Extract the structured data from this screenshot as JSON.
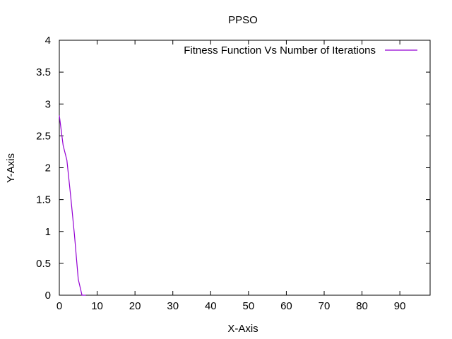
{
  "chart_data": {
    "type": "line",
    "title": "PPSO",
    "xlabel": "X-Axis",
    "ylabel": "Y-Axis",
    "xlim": [
      0,
      98
    ],
    "ylim": [
      0,
      4
    ],
    "xticks": [
      0,
      10,
      20,
      30,
      40,
      50,
      60,
      70,
      80,
      90
    ],
    "yticks": [
      0,
      0.5,
      1,
      1.5,
      2,
      2.5,
      3,
      3.5,
      4
    ],
    "ytick_labels": [
      "0",
      "0.5",
      "1",
      "1.5",
      "2",
      "2.5",
      "3",
      "3.5",
      "4"
    ],
    "xtick_labels": [
      "0",
      "10",
      "20",
      "30",
      "40",
      "50",
      "60",
      "70",
      "80",
      "90"
    ],
    "grid": false,
    "legend_position": "top-right",
    "series": [
      {
        "name": "Fitness Function Vs Number of Iterations",
        "color": "#9400d3",
        "x": [
          0,
          1,
          2,
          3,
          4,
          5,
          6,
          7
        ],
        "y": [
          2.82,
          2.35,
          2.12,
          1.55,
          0.95,
          0.25,
          0.0,
          0.0
        ]
      }
    ]
  }
}
